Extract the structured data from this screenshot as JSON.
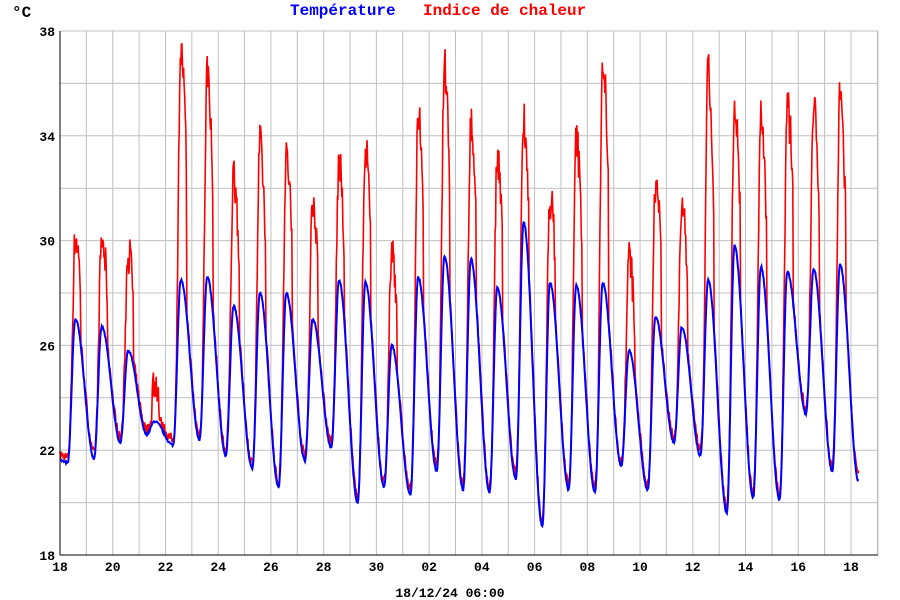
{
  "chart_data": {
    "type": "line",
    "unit_label": "°C",
    "legend": [
      {
        "name": "Température",
        "color": "#0000ff"
      },
      {
        "name": "Indice de chaleur",
        "color": "#ff0000"
      }
    ],
    "legend_placement": "top-center",
    "xlabel": "18/12/24 06:00",
    "x_tick_labels": [
      "18",
      "20",
      "22",
      "24",
      "26",
      "28",
      "30",
      "02",
      "04",
      "06",
      "08",
      "10",
      "12",
      "14",
      "16",
      "18"
    ],
    "x_range_days": [
      0,
      31
    ],
    "y_tick_labels": [
      "18",
      "22",
      "26",
      "30",
      "34",
      "38"
    ],
    "ylim": [
      18,
      38
    ],
    "grid": true,
    "days": [
      "18",
      "19",
      "20",
      "21",
      "22",
      "23",
      "24",
      "25",
      "26",
      "27",
      "28",
      "29",
      "30",
      "01",
      "02",
      "03",
      "04",
      "05",
      "06",
      "07",
      "08",
      "09",
      "10",
      "11",
      "12",
      "13",
      "14",
      "15",
      "16",
      "17",
      "18"
    ],
    "series": [
      {
        "name": "Température daily max",
        "values": [
          27.0,
          26.7,
          25.8,
          23.1,
          28.5,
          28.6,
          27.5,
          28.0,
          28.0,
          27.0,
          28.5,
          28.4,
          26.0,
          28.6,
          29.4,
          29.3,
          28.2,
          30.7,
          28.4,
          28.3,
          28.4,
          25.8,
          27.1,
          26.7,
          28.5,
          29.8,
          29.0,
          28.8,
          28.9,
          29.1,
          24.3
        ]
      },
      {
        "name": "Température daily min",
        "values": [
          21.5,
          21.7,
          22.3,
          22.6,
          22.2,
          22.4,
          21.8,
          21.3,
          20.6,
          21.6,
          22.1,
          20.0,
          20.6,
          20.3,
          21.2,
          20.5,
          20.4,
          20.9,
          19.1,
          20.5,
          20.4,
          21.4,
          20.5,
          22.3,
          21.8,
          19.6,
          20.2,
          20.1,
          23.4,
          21.2,
          20.8
        ]
      },
      {
        "name": "Indice de chaleur daily max",
        "values": [
          30.0,
          29.8,
          29.5,
          24.5,
          37.2,
          36.3,
          32.4,
          33.5,
          33.0,
          31.4,
          32.8,
          33.4,
          29.4,
          34.4,
          36.5,
          34.2,
          32.8,
          34.5,
          31.5,
          33.7,
          36.9,
          29.2,
          32.2,
          31.2,
          36.3,
          35.0,
          34.6,
          34.8,
          35.3,
          35.4,
          24.5
        ]
      }
    ]
  },
  "colors": {
    "temperature": "#0000ff",
    "heat_index": "#ff0000",
    "grid": "#c0c0c0"
  }
}
